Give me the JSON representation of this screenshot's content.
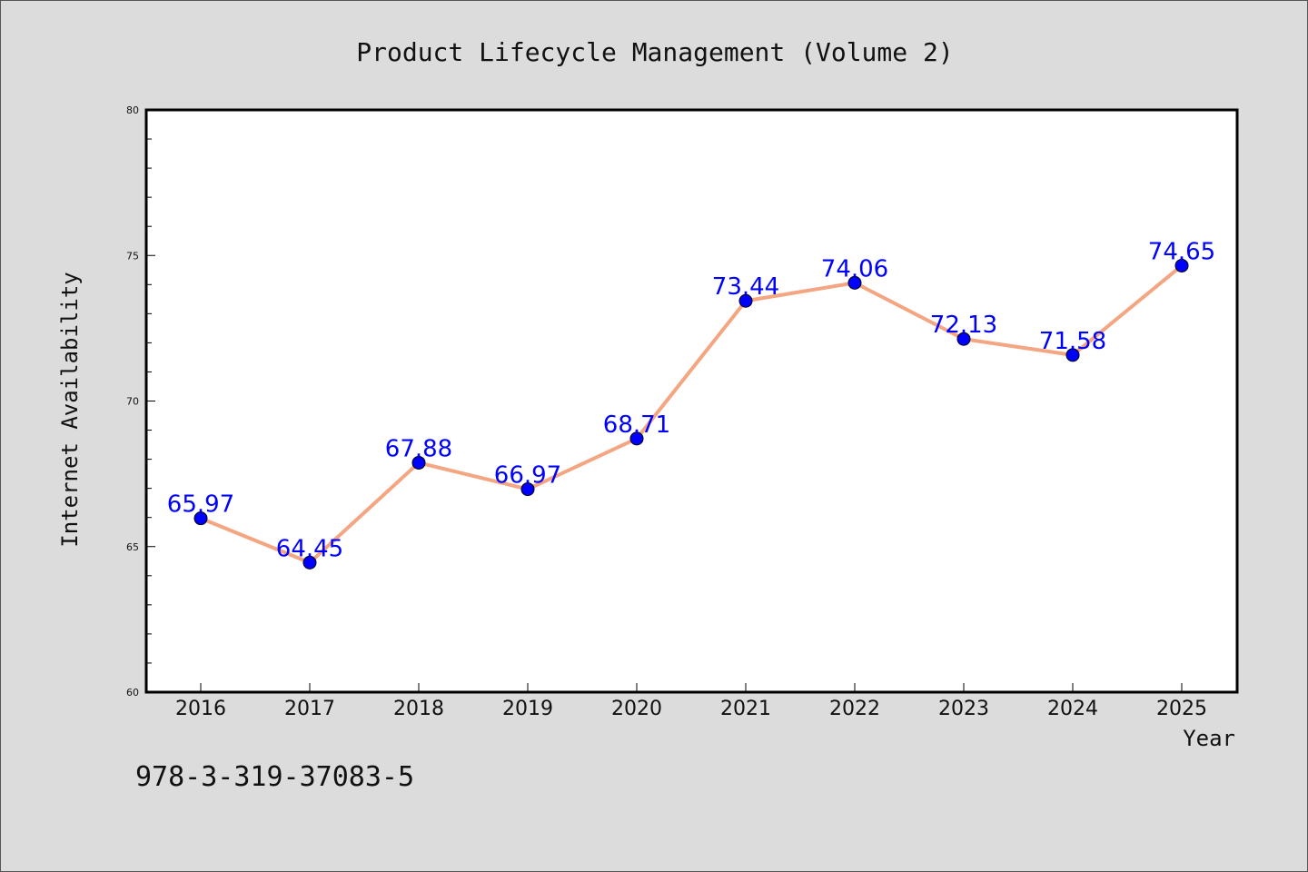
{
  "chart_data": {
    "type": "line",
    "title": "Product Lifecycle Management (Volume 2)",
    "xlabel": "Year",
    "ylabel": "Internet Availability",
    "categories": [
      "2016",
      "2017",
      "2018",
      "2019",
      "2020",
      "2021",
      "2022",
      "2023",
      "2024",
      "2025"
    ],
    "series": [
      {
        "values": [
          65.97,
          64.45,
          67.88,
          66.97,
          68.71,
          73.44,
          74.06,
          72.13,
          71.58,
          74.65
        ],
        "data_labels": [
          "65.97",
          "64.45",
          "67.88",
          "66.97",
          "68.71",
          "73.44",
          "74.06",
          "72.13",
          "71.58",
          "74.65"
        ]
      }
    ],
    "ylim": [
      60,
      80
    ],
    "yticks": [
      "60",
      "65",
      "70",
      "75",
      "80"
    ],
    "grid": false,
    "colors": {
      "line": "#f4a582",
      "marker": "#0000ff",
      "label": "#0000ff",
      "background": "#dcdcdc",
      "plot_bg": "#ffffff"
    }
  },
  "footer": {
    "isbn": "978-3-319-37083-5"
  }
}
